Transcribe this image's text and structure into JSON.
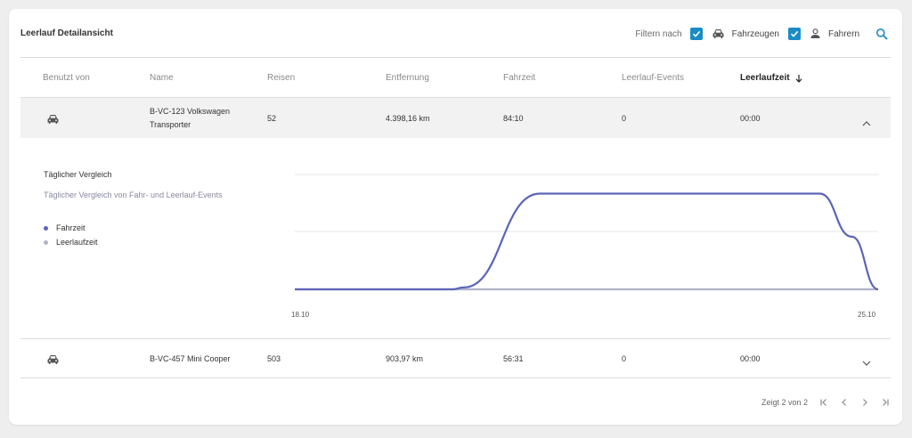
{
  "header": {
    "title": "Leerlauf Detailansicht",
    "filter_label": "Filtern nach",
    "filter_vehicles_label": "Fahrzeugen",
    "filter_drivers_label": "Fahrern"
  },
  "columns": [
    {
      "key": "used_by",
      "label": "Benutzt von"
    },
    {
      "key": "name",
      "label": "Name"
    },
    {
      "key": "trips",
      "label": "Reisen"
    },
    {
      "key": "distance",
      "label": "Entfernung"
    },
    {
      "key": "drive_time",
      "label": "Fahrzeit"
    },
    {
      "key": "idle_events",
      "label": "Leerlauf-Events"
    },
    {
      "key": "idle_time",
      "label": "Leerlaufzeit",
      "sorted": "desc"
    }
  ],
  "rows": [
    {
      "icon": "car-icon",
      "name_line1": "B-VC-123 Volkswagen",
      "name_line2": "Transporter",
      "trips": "52",
      "distance": "4.398,16 km",
      "drive_time": "84:10",
      "idle_events": "0",
      "idle_time": "00:00",
      "expanded": true
    },
    {
      "icon": "car-icon",
      "name_line1": "B-VC-457 Mini Cooper",
      "name_line2": "",
      "trips": "503",
      "distance": "903,97 km",
      "drive_time": "56:31",
      "idle_events": "0",
      "idle_time": "00:00",
      "expanded": false
    }
  ],
  "detail": {
    "title": "Täglicher Vergleich",
    "subtitle": "Täglicher Vergleich von Fahr- und Leerlauf-Events",
    "legend": [
      {
        "label": "Fahrzeit",
        "color": "#5c65b8"
      },
      {
        "label": "Leerlaufzeit",
        "color": "#b0b4c8"
      }
    ]
  },
  "chart_data": {
    "type": "line",
    "x_tick_labels": [
      "18.10",
      "25.10"
    ],
    "series": [
      {
        "name": "Fahrzeit",
        "color": "#5c65b8",
        "x": [
          0,
          0.27,
          0.29,
          0.42,
          0.9,
          0.955,
          1.0
        ],
        "values": [
          0,
          0,
          0.02,
          1.0,
          1.0,
          0.55,
          0
        ]
      },
      {
        "name": "Leerlaufzeit",
        "color": "#b0b4c8",
        "x": [
          0,
          1.0
        ],
        "values": [
          0,
          0
        ]
      }
    ],
    "ylim": [
      0,
      1.2
    ],
    "grid": true
  },
  "pager": {
    "summary": "Zeigt 2 von 2"
  },
  "colors": {
    "accent": "#1a8cc4",
    "expanded_row_bg": "#f2f2f2"
  }
}
